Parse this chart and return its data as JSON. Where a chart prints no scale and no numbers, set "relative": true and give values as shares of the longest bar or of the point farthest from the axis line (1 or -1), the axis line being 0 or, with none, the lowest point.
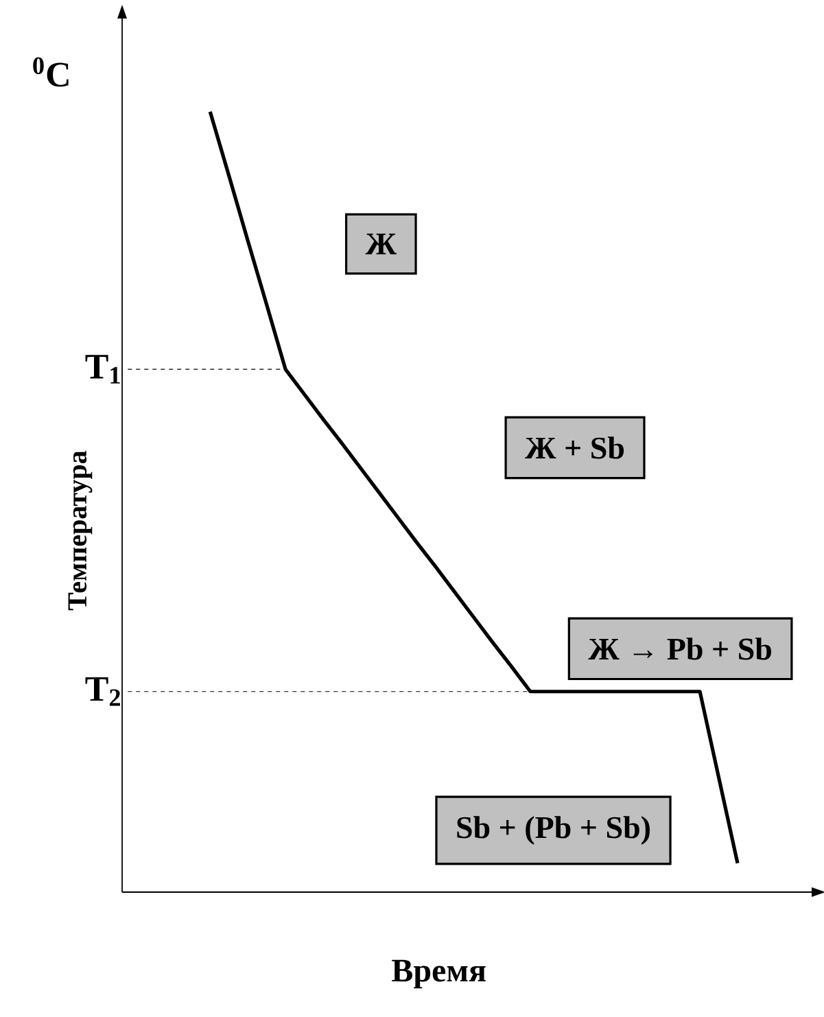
{
  "chart_data": {
    "type": "line",
    "relative": true,
    "xlabel": "Время",
    "ylabel": "Температура",
    "categories": [
      null,
      null,
      null,
      null,
      null,
      null,
      null,
      null,
      null,
      null,
      null,
      null,
      null,
      null,
      null,
      null,
      null,
      null,
      null,
      null,
      null,
      null,
      null,
      null,
      null,
      null,
      null,
      null,
      null
    ],
    "marker": "none",
    "line_style": "solid",
    "series": [
      {
        "color": "#000000",
        "values": [
          1,
          0.918,
          0.835,
          0.753,
          0.67,
          0.638,
          0.606,
          0.575,
          0.543,
          0.511,
          0.479,
          0.447,
          0.416,
          0.384,
          0.352,
          0.32,
          0.289,
          0.257,
          0.257,
          0.257,
          0.257,
          0.257,
          0.257,
          0.257,
          0.257,
          0.257,
          0.257,
          0.147,
          0.037
        ]
      }
    ],
    "ref_lines": [
      {
        "axis": "y",
        "value": 0.67,
        "label": "T$_{1}$",
        "line_style": "dashed"
      },
      {
        "axis": "y",
        "value": 0.257,
        "label": "T$_{2}$",
        "line_style": "dashed"
      }
    ],
    "annotations": [
      "$^{0}$C",
      "Ж",
      "Ж + Sb",
      "Ж → Pb + Sb",
      "Sb + (Pb + Sb)"
    ]
  }
}
